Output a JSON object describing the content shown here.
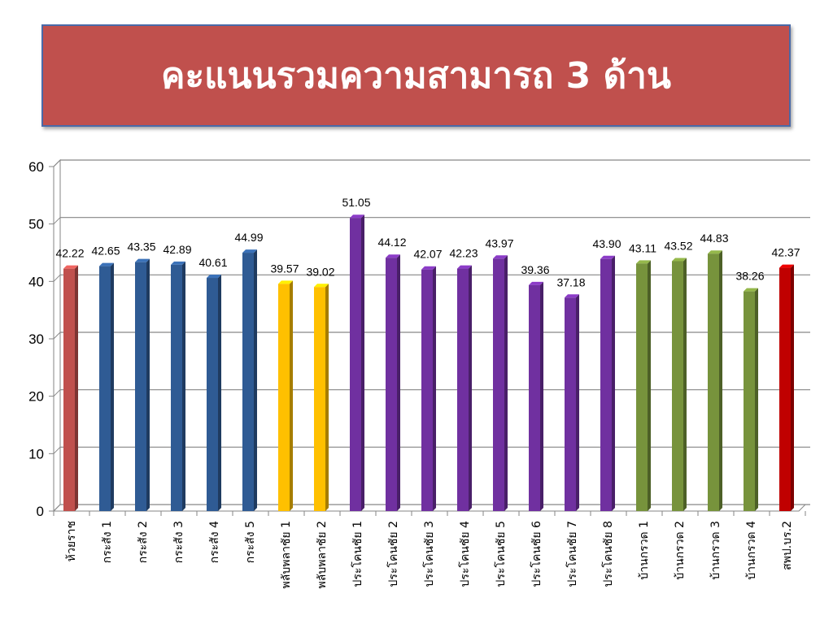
{
  "title": "คะแนนรวมความสามารถ 3 ด้าน",
  "chart_data": {
    "type": "bar",
    "categories": [
      "ห้วยราช",
      "กระสัง 1",
      "กระสัง 2",
      "กระสัง 3",
      "กระสัง 4",
      "กระสัง 5",
      "พลับพลาชัย 1",
      "พลับพลาชัย 2",
      "ประโคนชัย 1",
      "ประโคนชัย 2",
      "ประโคนชัย 3",
      "ประโคนชัย 4",
      "ประโคนชัย 5",
      "ประโคนชัย 6",
      "ประโคนชัย 7",
      "ประโคนชัย 8",
      "บ้านกรวด 1",
      "บ้านกรวด 2",
      "บ้านกรวด 3",
      "บ้านกรวด 4",
      "สพป.บร.2"
    ],
    "values": [
      42.22,
      42.65,
      43.35,
      42.89,
      40.61,
      44.99,
      39.57,
      39.02,
      51.05,
      44.12,
      42.07,
      42.23,
      43.97,
      39.36,
      37.18,
      43.9,
      43.11,
      43.52,
      44.83,
      38.26,
      42.37
    ],
    "value_labels": [
      "42.22",
      "42.65",
      "43.35",
      "42.89",
      "40.61",
      "44.99",
      "39.57",
      "39.02",
      "51.05",
      "44.12",
      "42.07",
      "42.23",
      "43.97",
      "39.36",
      "37.18",
      "43.90",
      "43.11",
      "43.52",
      "44.83",
      "38.26",
      "42.37"
    ],
    "colors": [
      "#c0504d",
      "#2f5b94",
      "#2f5b94",
      "#2f5b94",
      "#2f5b94",
      "#2f5b94",
      "#ffc000",
      "#ffc000",
      "#7030a0",
      "#7030a0",
      "#7030a0",
      "#7030a0",
      "#7030a0",
      "#7030a0",
      "#7030a0",
      "#7030a0",
      "#77933c",
      "#77933c",
      "#77933c",
      "#77933c",
      "#c00000"
    ],
    "yticks": [
      "0",
      "10",
      "20",
      "30",
      "40",
      "50",
      "60"
    ],
    "ylim": [
      0,
      60
    ],
    "grid": true,
    "xlabel": "",
    "ylabel": ""
  }
}
